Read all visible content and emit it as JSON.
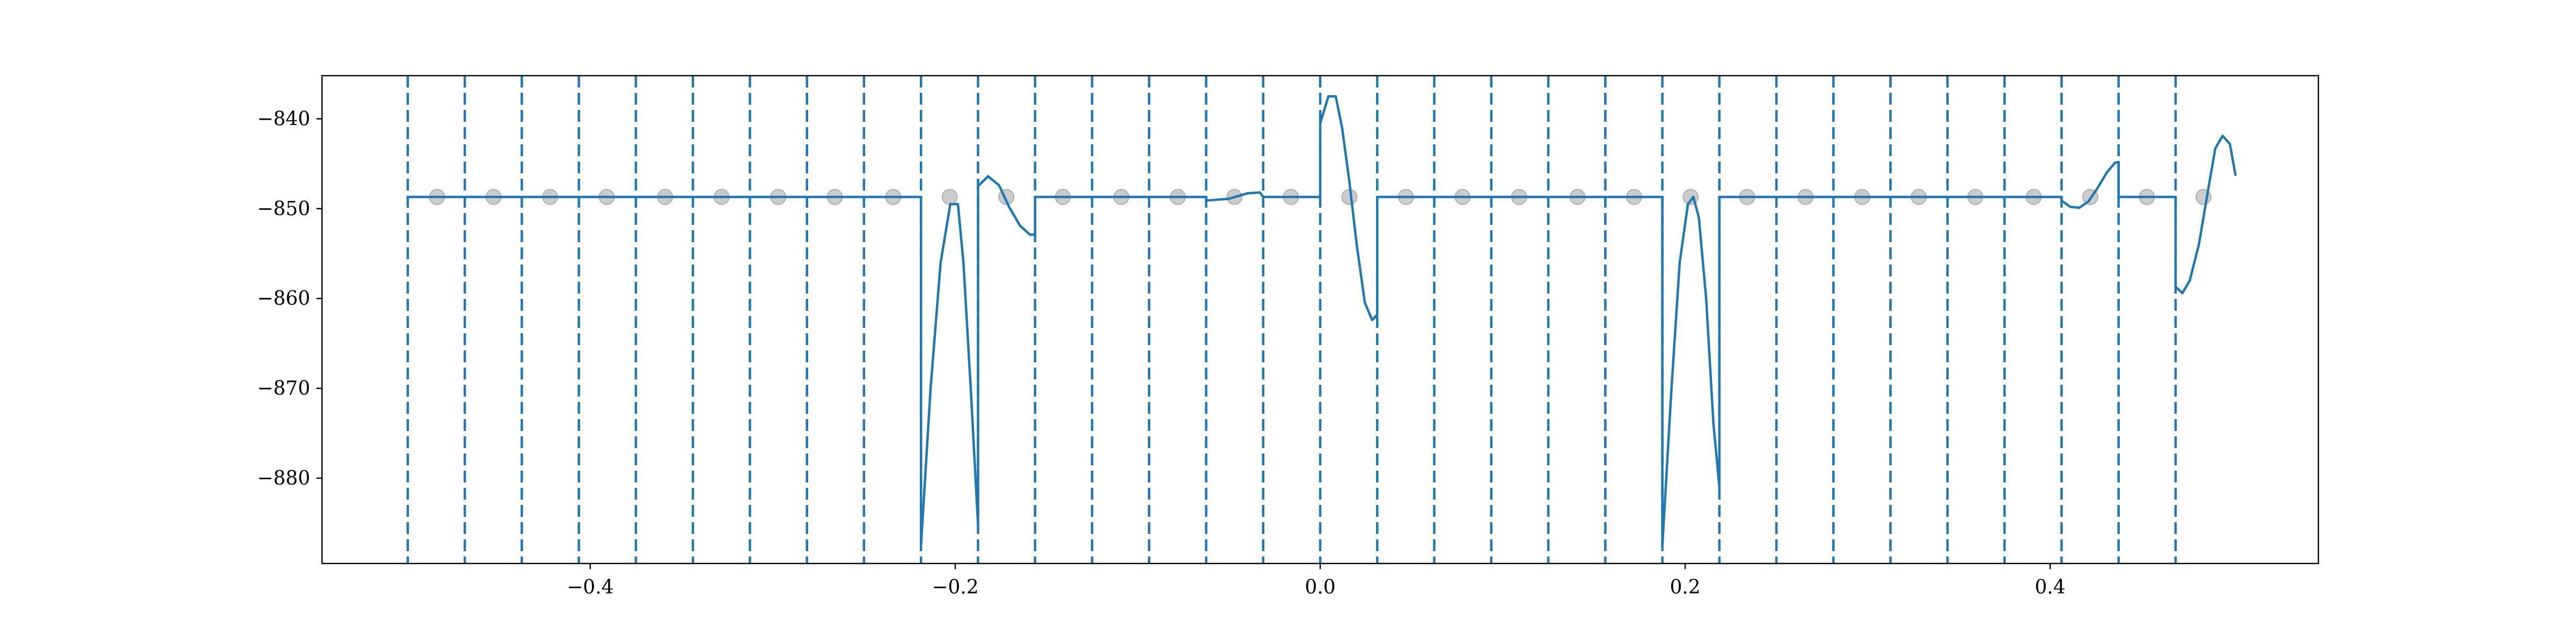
{
  "chart_data": {
    "type": "line",
    "title": "",
    "xlabel": "",
    "ylabel": "",
    "xlim": [
      -0.547,
      0.547
    ],
    "ylim": [
      -889.5,
      -835.2
    ],
    "grid": false,
    "x_ticks": [
      {
        "value": -0.4,
        "label": "−0.4"
      },
      {
        "value": -0.2,
        "label": "−0.2"
      },
      {
        "value": 0.0,
        "label": "0.0"
      },
      {
        "value": 0.2,
        "label": "0.2"
      },
      {
        "value": 0.4,
        "label": "0.4"
      }
    ],
    "y_ticks": [
      {
        "value": -840,
        "label": "−840"
      },
      {
        "value": -850,
        "label": "−850"
      },
      {
        "value": -860,
        "label": "−860"
      },
      {
        "value": -870,
        "label": "−870"
      },
      {
        "value": -880,
        "label": "−880"
      }
    ],
    "boundaries": [
      -0.5,
      -0.46875,
      -0.4375,
      -0.40625,
      -0.375,
      -0.34375,
      -0.3125,
      -0.28125,
      -0.25,
      -0.21875,
      -0.1875,
      -0.15625,
      -0.125,
      -0.09375,
      -0.0625,
      -0.03125,
      0.0,
      0.03125,
      0.0625,
      0.09375,
      0.125,
      0.15625,
      0.1875,
      0.21875,
      0.25,
      0.28125,
      0.3125,
      0.34375,
      0.375,
      0.40625,
      0.4375,
      0.46875
    ],
    "boundary_color": "#1f77b4",
    "markers": {
      "color": "#aaaaaa",
      "y": -848.7,
      "x": [
        -0.484,
        -0.453,
        -0.422,
        -0.391,
        -0.359,
        -0.328,
        -0.297,
        -0.266,
        -0.234,
        -0.203,
        -0.172,
        -0.141,
        -0.109,
        -0.078,
        -0.047,
        -0.016,
        0.016,
        0.047,
        0.078,
        0.109,
        0.141,
        0.172,
        0.203,
        0.234,
        0.266,
        0.297,
        0.328,
        0.359,
        0.391,
        0.422,
        0.453,
        0.484
      ]
    },
    "series": [
      {
        "color": "#1f77b4",
        "points": [
          [
            -0.5,
            -848.7
          ],
          [
            -0.21875,
            -848.7
          ],
          [
            -0.21875,
            -887.5
          ],
          [
            -0.2135,
            -870
          ],
          [
            -0.208,
            -856
          ],
          [
            -0.2027,
            -849.5
          ],
          [
            -0.1985,
            -849.5
          ],
          [
            -0.1955,
            -856
          ],
          [
            -0.1915,
            -870
          ],
          [
            -0.1875,
            -885.2
          ],
          [
            -0.1875,
            -847.5
          ],
          [
            -0.182,
            -846.4
          ],
          [
            -0.176,
            -847.4
          ],
          [
            -0.1705,
            -849.8
          ],
          [
            -0.1645,
            -851.9
          ],
          [
            -0.159,
            -852.9
          ],
          [
            -0.15625,
            -852.9
          ],
          [
            -0.15625,
            -848.7
          ],
          [
            -0.0625,
            -848.7
          ],
          [
            -0.0625,
            -849.1
          ],
          [
            -0.05,
            -848.9
          ],
          [
            -0.04,
            -848.3
          ],
          [
            -0.033,
            -848.2
          ],
          [
            -0.03125,
            -848.7
          ],
          [
            0.0,
            -848.7
          ],
          [
            0.0,
            -840.5
          ],
          [
            0.0045,
            -837.5
          ],
          [
            0.0085,
            -837.5
          ],
          [
            0.012,
            -841
          ],
          [
            0.016,
            -847
          ],
          [
            0.02,
            -854
          ],
          [
            0.0245,
            -860.5
          ],
          [
            0.0285,
            -862.4
          ],
          [
            0.03125,
            -861.8
          ],
          [
            0.03125,
            -848.7
          ],
          [
            0.1875,
            -848.7
          ],
          [
            0.1875,
            -887.5
          ],
          [
            0.1925,
            -870
          ],
          [
            0.197,
            -856
          ],
          [
            0.2015,
            -849.5
          ],
          [
            0.2045,
            -848.7
          ],
          [
            0.2075,
            -851
          ],
          [
            0.2115,
            -860
          ],
          [
            0.2155,
            -874
          ],
          [
            0.21875,
            -881
          ],
          [
            0.21875,
            -848.7
          ],
          [
            0.40625,
            -848.7
          ],
          [
            0.40625,
            -849.1
          ],
          [
            0.411,
            -849.8
          ],
          [
            0.416,
            -849.9
          ],
          [
            0.421,
            -849.2
          ],
          [
            0.426,
            -847.7
          ],
          [
            0.431,
            -846
          ],
          [
            0.4355,
            -844.9
          ],
          [
            0.4375,
            -844.8
          ],
          [
            0.4375,
            -848.7
          ],
          [
            0.46875,
            -848.7
          ],
          [
            0.46875,
            -858.7
          ],
          [
            0.4725,
            -859.4
          ],
          [
            0.4765,
            -858
          ],
          [
            0.4815,
            -854
          ],
          [
            0.4865,
            -848
          ],
          [
            0.4905,
            -843.3
          ],
          [
            0.4945,
            -841.9
          ],
          [
            0.4985,
            -842.8
          ],
          [
            0.5015,
            -846.2
          ]
        ]
      }
    ]
  }
}
